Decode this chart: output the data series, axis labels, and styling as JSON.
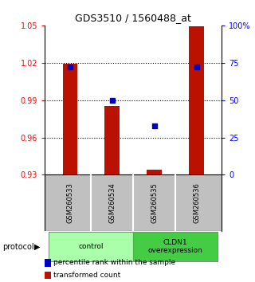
{
  "title": "GDS3510 / 1560488_at",
  "samples": [
    "GSM260533",
    "GSM260534",
    "GSM260535",
    "GSM260536"
  ],
  "bar_values": [
    1.019,
    0.985,
    0.934,
    1.049
  ],
  "bar_bottom": 0.93,
  "percentile_values": [
    72,
    50,
    33,
    72
  ],
  "ylim_left": [
    0.93,
    1.05
  ],
  "ylim_right": [
    0,
    100
  ],
  "yticks_left": [
    0.93,
    0.96,
    0.99,
    1.02,
    1.05
  ],
  "yticks_right": [
    0,
    25,
    50,
    75,
    100
  ],
  "ytick_labels_right": [
    "0",
    "25",
    "50",
    "75",
    "100%"
  ],
  "grid_lines": [
    0.96,
    0.99,
    1.02
  ],
  "bar_color": "#bb1100",
  "point_color": "#0000cc",
  "groups": [
    {
      "label": "control",
      "samples": [
        0,
        1
      ],
      "color": "#aaffaa"
    },
    {
      "label": "CLDN1\noverexpression",
      "samples": [
        2,
        3
      ],
      "color": "#44cc44"
    }
  ],
  "protocol_label": "protocol",
  "legend_items": [
    {
      "color": "#bb1100",
      "label": "transformed count"
    },
    {
      "color": "#0000cc",
      "label": "percentile rank within the sample"
    }
  ],
  "background_color": "#ffffff",
  "plot_bg_color": "#ffffff",
  "sample_area_color": "#c0c0c0"
}
